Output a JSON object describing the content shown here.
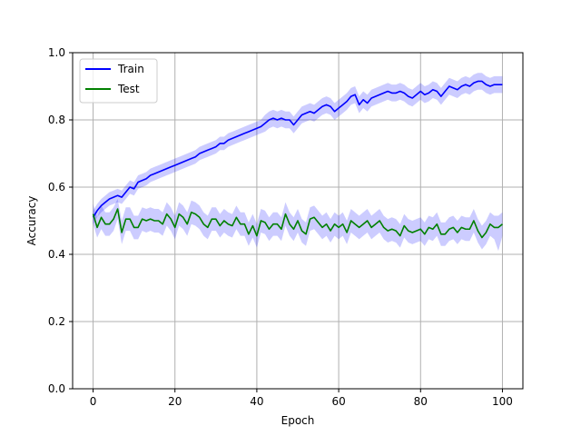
{
  "chart_data": {
    "type": "line",
    "title": "",
    "xlabel": "Epoch",
    "ylabel": "Accuracy",
    "xlim": [
      -5,
      105
    ],
    "ylim": [
      0.0,
      1.0
    ],
    "xticks": [
      0,
      20,
      40,
      60,
      80,
      100
    ],
    "xtick_labels": [
      "0",
      "20",
      "40",
      "60",
      "80",
      "100"
    ],
    "yticks": [
      0.0,
      0.2,
      0.4,
      0.6,
      0.8,
      1.0
    ],
    "ytick_labels": [
      "0.0",
      "0.2",
      "0.4",
      "0.6",
      "0.8",
      "1.0"
    ],
    "grid": true,
    "legend_position": "top-left",
    "band_color": "#0000ff",
    "x": [
      0,
      1,
      2,
      3,
      4,
      5,
      6,
      7,
      8,
      9,
      10,
      11,
      12,
      13,
      14,
      15,
      16,
      17,
      18,
      19,
      20,
      21,
      22,
      23,
      24,
      25,
      26,
      27,
      28,
      29,
      30,
      31,
      32,
      33,
      34,
      35,
      36,
      37,
      38,
      39,
      40,
      41,
      42,
      43,
      44,
      45,
      46,
      47,
      48,
      49,
      50,
      51,
      52,
      53,
      54,
      55,
      56,
      57,
      58,
      59,
      60,
      61,
      62,
      63,
      64,
      65,
      66,
      67,
      68,
      69,
      70,
      71,
      72,
      73,
      74,
      75,
      76,
      77,
      78,
      79,
      80,
      81,
      82,
      83,
      84,
      85,
      86,
      87,
      88,
      89,
      90,
      91,
      92,
      93,
      94,
      95,
      96,
      97,
      98,
      99,
      100
    ],
    "series": [
      {
        "name": "Train",
        "color": "#0000ff",
        "values": [
          0.51,
          0.53,
          0.545,
          0.555,
          0.565,
          0.57,
          0.575,
          0.57,
          0.585,
          0.6,
          0.595,
          0.615,
          0.62,
          0.625,
          0.635,
          0.64,
          0.645,
          0.65,
          0.655,
          0.66,
          0.665,
          0.67,
          0.675,
          0.68,
          0.685,
          0.69,
          0.7,
          0.705,
          0.71,
          0.715,
          0.72,
          0.73,
          0.73,
          0.74,
          0.745,
          0.75,
          0.755,
          0.76,
          0.765,
          0.77,
          0.775,
          0.78,
          0.79,
          0.8,
          0.805,
          0.8,
          0.805,
          0.8,
          0.8,
          0.785,
          0.8,
          0.815,
          0.82,
          0.825,
          0.82,
          0.83,
          0.84,
          0.845,
          0.84,
          0.825,
          0.835,
          0.845,
          0.855,
          0.87,
          0.875,
          0.845,
          0.86,
          0.85,
          0.865,
          0.87,
          0.875,
          0.88,
          0.885,
          0.88,
          0.88,
          0.885,
          0.88,
          0.87,
          0.865,
          0.875,
          0.885,
          0.875,
          0.88,
          0.89,
          0.885,
          0.87,
          0.885,
          0.9,
          0.895,
          0.89,
          0.9,
          0.905,
          0.9,
          0.91,
          0.915,
          0.915,
          0.905,
          0.9,
          0.905,
          0.905,
          0.905
        ],
        "lower": [
          0.49,
          0.51,
          0.525,
          0.535,
          0.545,
          0.55,
          0.555,
          0.55,
          0.565,
          0.58,
          0.575,
          0.595,
          0.6,
          0.605,
          0.615,
          0.62,
          0.625,
          0.63,
          0.635,
          0.64,
          0.645,
          0.65,
          0.655,
          0.66,
          0.665,
          0.67,
          0.68,
          0.685,
          0.69,
          0.695,
          0.7,
          0.71,
          0.71,
          0.72,
          0.725,
          0.73,
          0.735,
          0.74,
          0.745,
          0.75,
          0.755,
          0.76,
          0.765,
          0.775,
          0.78,
          0.775,
          0.78,
          0.775,
          0.775,
          0.76,
          0.775,
          0.79,
          0.795,
          0.8,
          0.795,
          0.805,
          0.815,
          0.82,
          0.815,
          0.8,
          0.81,
          0.82,
          0.83,
          0.845,
          0.85,
          0.82,
          0.835,
          0.825,
          0.84,
          0.845,
          0.85,
          0.855,
          0.86,
          0.855,
          0.855,
          0.86,
          0.855,
          0.845,
          0.84,
          0.85,
          0.86,
          0.85,
          0.855,
          0.865,
          0.86,
          0.845,
          0.86,
          0.875,
          0.87,
          0.865,
          0.875,
          0.88,
          0.875,
          0.885,
          0.89,
          0.89,
          0.88,
          0.875,
          0.88,
          0.88,
          0.88
        ],
        "upper": [
          0.53,
          0.55,
          0.565,
          0.575,
          0.585,
          0.59,
          0.595,
          0.59,
          0.605,
          0.62,
          0.615,
          0.635,
          0.64,
          0.645,
          0.655,
          0.66,
          0.665,
          0.67,
          0.675,
          0.68,
          0.685,
          0.69,
          0.695,
          0.7,
          0.705,
          0.71,
          0.72,
          0.725,
          0.73,
          0.735,
          0.74,
          0.75,
          0.75,
          0.76,
          0.765,
          0.77,
          0.775,
          0.78,
          0.785,
          0.79,
          0.795,
          0.8,
          0.815,
          0.825,
          0.83,
          0.825,
          0.83,
          0.825,
          0.825,
          0.81,
          0.825,
          0.84,
          0.845,
          0.85,
          0.845,
          0.855,
          0.865,
          0.87,
          0.865,
          0.85,
          0.86,
          0.87,
          0.88,
          0.895,
          0.9,
          0.87,
          0.885,
          0.875,
          0.89,
          0.895,
          0.9,
          0.905,
          0.91,
          0.905,
          0.905,
          0.91,
          0.905,
          0.895,
          0.89,
          0.9,
          0.91,
          0.9,
          0.905,
          0.915,
          0.91,
          0.895,
          0.91,
          0.925,
          0.92,
          0.915,
          0.925,
          0.93,
          0.925,
          0.935,
          0.94,
          0.94,
          0.93,
          0.925,
          0.93,
          0.93,
          0.93
        ]
      },
      {
        "name": "Test",
        "color": "#008000",
        "values": [
          0.52,
          0.48,
          0.51,
          0.49,
          0.49,
          0.505,
          0.535,
          0.465,
          0.505,
          0.505,
          0.48,
          0.48,
          0.505,
          0.5,
          0.505,
          0.5,
          0.5,
          0.49,
          0.52,
          0.505,
          0.48,
          0.52,
          0.51,
          0.49,
          0.525,
          0.52,
          0.51,
          0.49,
          0.48,
          0.505,
          0.505,
          0.485,
          0.5,
          0.49,
          0.485,
          0.51,
          0.49,
          0.49,
          0.46,
          0.485,
          0.455,
          0.5,
          0.495,
          0.475,
          0.49,
          0.49,
          0.475,
          0.52,
          0.49,
          0.475,
          0.5,
          0.47,
          0.46,
          0.505,
          0.51,
          0.495,
          0.48,
          0.49,
          0.47,
          0.49,
          0.48,
          0.49,
          0.465,
          0.5,
          0.49,
          0.48,
          0.49,
          0.5,
          0.48,
          0.49,
          0.5,
          0.48,
          0.47,
          0.475,
          0.47,
          0.455,
          0.485,
          0.47,
          0.465,
          0.47,
          0.475,
          0.46,
          0.48,
          0.475,
          0.49,
          0.46,
          0.46,
          0.475,
          0.48,
          0.465,
          0.48,
          0.475,
          0.475,
          0.5,
          0.47,
          0.45,
          0.465,
          0.49,
          0.48,
          0.48,
          0.49
        ],
        "lower": [
          0.49,
          0.45,
          0.475,
          0.455,
          0.455,
          0.47,
          0.505,
          0.43,
          0.47,
          0.47,
          0.445,
          0.445,
          0.47,
          0.465,
          0.47,
          0.465,
          0.465,
          0.455,
          0.485,
          0.47,
          0.445,
          0.485,
          0.475,
          0.455,
          0.49,
          0.485,
          0.475,
          0.455,
          0.445,
          0.47,
          0.47,
          0.45,
          0.465,
          0.455,
          0.45,
          0.475,
          0.455,
          0.455,
          0.425,
          0.45,
          0.42,
          0.465,
          0.46,
          0.44,
          0.455,
          0.455,
          0.44,
          0.485,
          0.455,
          0.44,
          0.465,
          0.435,
          0.425,
          0.47,
          0.475,
          0.46,
          0.445,
          0.455,
          0.435,
          0.455,
          0.445,
          0.455,
          0.43,
          0.465,
          0.455,
          0.445,
          0.455,
          0.465,
          0.445,
          0.455,
          0.465,
          0.445,
          0.435,
          0.44,
          0.435,
          0.42,
          0.45,
          0.435,
          0.43,
          0.435,
          0.44,
          0.425,
          0.445,
          0.44,
          0.455,
          0.425,
          0.425,
          0.44,
          0.445,
          0.43,
          0.445,
          0.44,
          0.44,
          0.465,
          0.435,
          0.415,
          0.43,
          0.455,
          0.445,
          0.41,
          0.455
        ],
        "upper": [
          0.55,
          0.51,
          0.545,
          0.525,
          0.525,
          0.54,
          0.565,
          0.5,
          0.54,
          0.54,
          0.515,
          0.515,
          0.54,
          0.535,
          0.54,
          0.535,
          0.535,
          0.525,
          0.555,
          0.54,
          0.515,
          0.555,
          0.545,
          0.525,
          0.56,
          0.555,
          0.545,
          0.525,
          0.515,
          0.54,
          0.54,
          0.52,
          0.535,
          0.525,
          0.52,
          0.545,
          0.525,
          0.525,
          0.495,
          0.52,
          0.49,
          0.535,
          0.53,
          0.51,
          0.525,
          0.525,
          0.51,
          0.555,
          0.525,
          0.51,
          0.535,
          0.505,
          0.495,
          0.54,
          0.545,
          0.53,
          0.515,
          0.525,
          0.505,
          0.525,
          0.515,
          0.525,
          0.5,
          0.535,
          0.525,
          0.515,
          0.525,
          0.535,
          0.515,
          0.525,
          0.535,
          0.515,
          0.505,
          0.51,
          0.505,
          0.49,
          0.52,
          0.505,
          0.5,
          0.505,
          0.51,
          0.495,
          0.515,
          0.51,
          0.525,
          0.495,
          0.495,
          0.51,
          0.515,
          0.5,
          0.515,
          0.51,
          0.51,
          0.535,
          0.505,
          0.485,
          0.5,
          0.525,
          0.515,
          0.515,
          0.525
        ]
      }
    ]
  }
}
